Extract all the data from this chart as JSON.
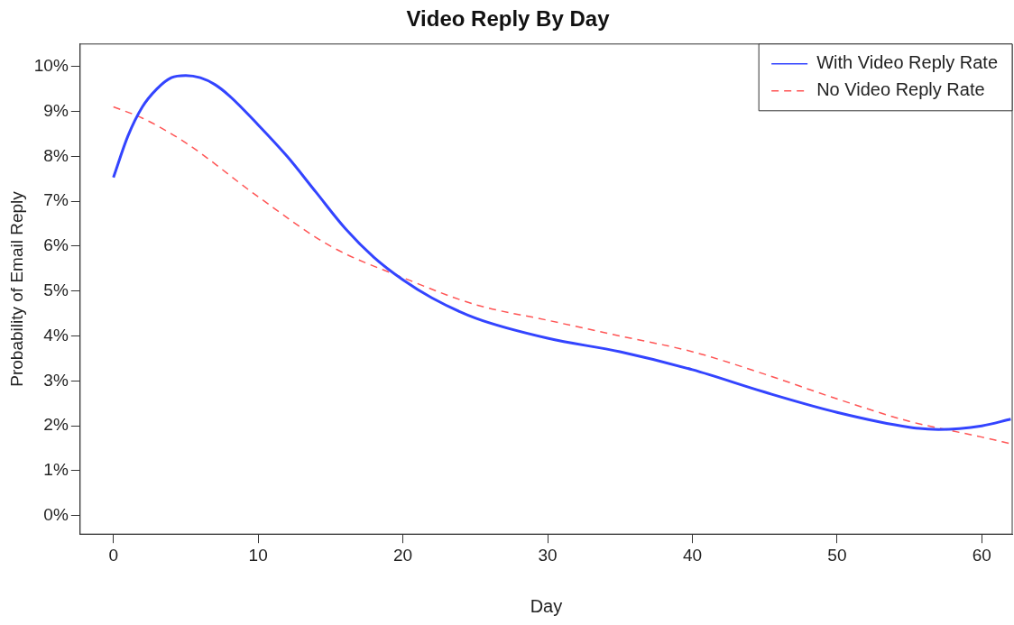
{
  "chart_data": {
    "type": "line",
    "title": "Video Reply By Day",
    "xlabel": "Day",
    "ylabel": "Probability of Email Reply",
    "xlim": [
      -2.3,
      62.1
    ],
    "xticks": [
      0,
      10,
      20,
      30,
      40,
      50,
      60
    ],
    "ylim": [
      -0.41,
      10.5
    ],
    "yticks": [
      {
        "value": 0,
        "label": "0%"
      },
      {
        "value": 1,
        "label": "1%"
      },
      {
        "value": 2,
        "label": "2%"
      },
      {
        "value": 3,
        "label": "3%"
      },
      {
        "value": 4,
        "label": "4%"
      },
      {
        "value": 5,
        "label": "5%"
      },
      {
        "value": 6,
        "label": "6%"
      },
      {
        "value": 7,
        "label": "7%"
      },
      {
        "value": 8,
        "label": "8%"
      },
      {
        "value": 9,
        "label": "9%"
      },
      {
        "value": 10,
        "label": "10%"
      }
    ],
    "grid": false,
    "legend": "top right",
    "marker": "none",
    "series": [
      {
        "name": "With Video Reply Rate",
        "color": "#3344ff",
        "line_style": "solid",
        "x": [
          0,
          1,
          2,
          3,
          4,
          5,
          6,
          7,
          8,
          10,
          12,
          14,
          16,
          18,
          20,
          22,
          25,
          30,
          35,
          40,
          45,
          50,
          55,
          57,
          60,
          62
        ],
        "values": [
          7.53,
          8.45,
          9.1,
          9.5,
          9.75,
          9.8,
          9.75,
          9.6,
          9.35,
          8.7,
          8.0,
          7.2,
          6.4,
          5.75,
          5.25,
          4.85,
          4.4,
          3.95,
          3.65,
          3.25,
          2.75,
          2.3,
          1.97,
          1.92,
          2.0,
          2.15
        ]
      },
      {
        "name": "No Video Reply Rate",
        "color": "#ff5555",
        "line_style": "dashed",
        "x": [
          0,
          2,
          5,
          10,
          15,
          20,
          25,
          30,
          35,
          40,
          45,
          50,
          55,
          60,
          62
        ],
        "values": [
          9.1,
          8.85,
          8.3,
          7.1,
          6.0,
          5.3,
          4.7,
          4.35,
          4.0,
          3.65,
          3.15,
          2.6,
          2.1,
          1.75,
          1.6
        ]
      }
    ]
  }
}
